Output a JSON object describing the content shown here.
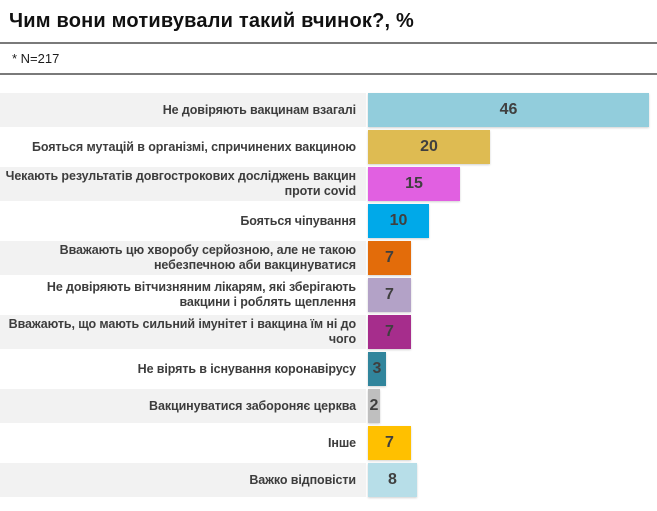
{
  "header": {
    "title": "Чим вони мотивували такий вчинок?, %",
    "note": "* N=217"
  },
  "chart_data": {
    "type": "bar",
    "orientation": "horizontal",
    "title": "Чим вони мотивували такий вчинок?, %",
    "subtitle": "* N=217",
    "unit": "%",
    "grid": false,
    "legend": "none",
    "axis_max": 46,
    "categories": [
      "Не довіряють вакцинам взагалі",
      "Бояться мутацій в організмі, спричинених вакциною",
      "Чекають результатів довгострокових досліджень вакцин проти covid",
      "Бояться чіпування",
      "Вважають цю хворобу серйозною, але не такою небезпечною аби вакцинуватися",
      "Не довіряють вітчизняним лікарям, які зберігають вакцини і роблять щеплення",
      "Вважають, що мають сильний імунітет і вакцина їм ні до чого",
      "Не вірять в існування коронавірусу",
      "Вакцинуватися забороняє церква",
      "Інше",
      "Важко відповісти"
    ],
    "values": [
      46,
      20,
      15,
      10,
      7,
      7,
      7,
      3,
      2,
      7,
      8
    ],
    "bar_colors": [
      "#92CDDC",
      "#DEBB52",
      "#E160E1",
      "#00A9E9",
      "#E36C0A",
      "#B3A2C7",
      "#A62D8C",
      "#31859C",
      "#BFBFBF",
      "#FFC000",
      "#B7DEE8"
    ],
    "stripe_color": "#F2F2F2",
    "value_text_color": "#3F3F3F",
    "striped_row_pattern": "odd"
  }
}
